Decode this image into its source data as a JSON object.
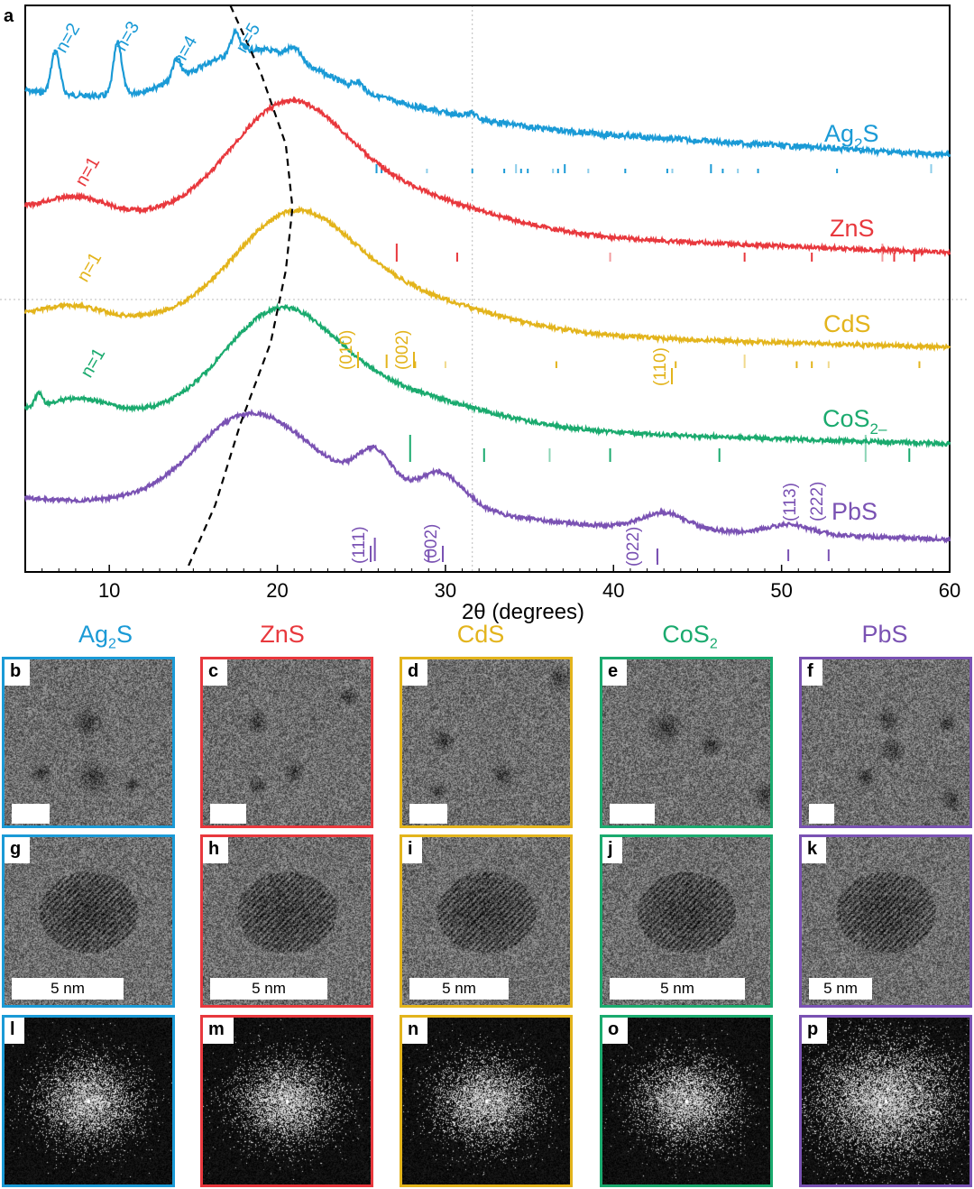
{
  "figure": {
    "panel_a_label": "a",
    "x_axis_label": "2θ (degrees)",
    "x_ticks": [
      "10",
      "20",
      "30",
      "40",
      "50",
      "60"
    ]
  },
  "chart_data": {
    "type": "line",
    "xlabel": "2θ (degrees)",
    "ylabel": "",
    "xlim": [
      5,
      60
    ],
    "x_ticks": [
      10,
      20,
      30,
      40,
      50,
      60
    ],
    "grid": false,
    "series": [
      {
        "name": "Ag2S",
        "color": "#1a9ad6",
        "offset": 0,
        "peaks": [
          {
            "x": 6.8,
            "label": "n=2"
          },
          {
            "x": 10.5,
            "label": "n=3"
          },
          {
            "x": 14.0,
            "label": "n=4"
          },
          {
            "x": 17.5,
            "label": "n=5"
          }
        ],
        "broad_max_x": 18.5,
        "reference_ticks": [
          25.9,
          26.2,
          28.9,
          31.6,
          33.5,
          34.2,
          34.5,
          34.9,
          36.4,
          36.7,
          37.1,
          38.5,
          40.7,
          43.2,
          43.5,
          45.8,
          46.5,
          47.4,
          48.6,
          53.3,
          58.9
        ]
      },
      {
        "name": "ZnS",
        "color": "#e8383d",
        "offset": 1,
        "peaks": [
          {
            "x": 8.0,
            "label": "n=1"
          }
        ],
        "broad_max_x": 20.5,
        "reference_ticks": [
          27.1,
          30.7,
          39.8,
          47.8,
          51.8,
          56.0,
          56.7,
          57.9
        ]
      },
      {
        "name": "CdS",
        "color": "#e3b41c",
        "offset": 2,
        "peaks": [
          {
            "x": 7.8,
            "label": "n=1"
          }
        ],
        "broad_max_x": 20.8,
        "reference_ticks": [
          26.5,
          28.2,
          30.0,
          36.6,
          43.7,
          47.8,
          50.9,
          51.8,
          52.8,
          58.2
        ],
        "annotations": [
          "(010)",
          "(002)",
          "(110)"
        ]
      },
      {
        "name": "CoS2",
        "color": "#1aaa6e",
        "offset": 3,
        "peaks": [
          {
            "x": 8.2,
            "label": "n=1"
          }
        ],
        "broad_max_x": 20.0,
        "reference_ticks": [
          27.9,
          32.3,
          36.2,
          39.8,
          46.3,
          55.0,
          57.6
        ]
      },
      {
        "name": "PbS",
        "color": "#7a52b3",
        "offset": 4,
        "peaks": [],
        "broad_max_x": 18.2,
        "reference_ticks": [
          25.8,
          29.0,
          42.6,
          50.4,
          52.8
        ],
        "annotations": [
          "(111)",
          "(002)",
          "(022)",
          "(113)",
          "(222)"
        ]
      }
    ],
    "dashed_trend_line": "n-peak envelope"
  },
  "curve_labels": {
    "ag2s": {
      "main": "Ag",
      "sub": "2",
      "tail": "S"
    },
    "zns": "ZnS",
    "cds": "CdS",
    "cos2": {
      "main": "CoS",
      "sub": "2–"
    },
    "pbs": "PbS"
  },
  "peak_labels": {
    "n2": "n=2",
    "n3": "n=3",
    "n4": "n=4",
    "n5": "n=5",
    "n1_zns": "n=1",
    "n1_cds": "n=1",
    "n1_cos2": "n=1"
  },
  "miller": {
    "cds_010": "(010)",
    "cds_002": "(002)",
    "cds_110": "(110)",
    "pbs_111": "(111)",
    "pbs_002": "(002)",
    "pbs_022": "(022)",
    "pbs_113": "(113)",
    "pbs_222": "(222)"
  },
  "columns": [
    {
      "key": "ag2s",
      "title_main": "Ag",
      "title_sub": "2",
      "title_tail": "S",
      "color": "#1a9ad6",
      "labels": [
        "b",
        "g",
        "l"
      ]
    },
    {
      "key": "zns",
      "title_main": "ZnS",
      "title_sub": "",
      "title_tail": "",
      "color": "#e8383d",
      "labels": [
        "c",
        "h",
        "m"
      ]
    },
    {
      "key": "cds",
      "title_main": "CdS",
      "title_sub": "",
      "title_tail": "",
      "color": "#e3b41c",
      "labels": [
        "d",
        "i",
        "n"
      ]
    },
    {
      "key": "cos2",
      "title_main": "CoS",
      "title_sub": "2",
      "title_tail": "",
      "color": "#1aaa6e",
      "labels": [
        "e",
        "j",
        "o"
      ]
    },
    {
      "key": "pbs",
      "title_main": "PbS",
      "title_sub": "",
      "title_tail": "",
      "color": "#7a52b3",
      "labels": [
        "f",
        "k",
        "p"
      ]
    }
  ],
  "scale_label": "5 nm"
}
